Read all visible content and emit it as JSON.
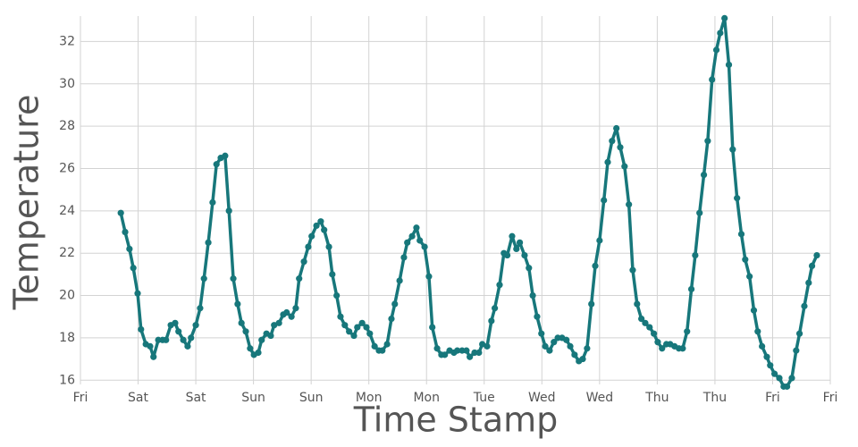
{
  "chart_data": {
    "type": "line",
    "xlabel": "Time Stamp",
    "ylabel": "Temperature",
    "color": "#17777b",
    "grid": true,
    "xlim": [
      0,
      156
    ],
    "xticks": [
      {
        "value": 0,
        "label": "Fri"
      },
      {
        "value": 12,
        "label": "Sat"
      },
      {
        "value": 24,
        "label": "Sat"
      },
      {
        "value": 36,
        "label": "Sun"
      },
      {
        "value": 48,
        "label": "Sun"
      },
      {
        "value": 60,
        "label": "Mon"
      },
      {
        "value": 72,
        "label": "Mon"
      },
      {
        "value": 84,
        "label": "Tue"
      },
      {
        "value": 96,
        "label": "Wed"
      },
      {
        "value": 108,
        "label": "Wed"
      },
      {
        "value": 120,
        "label": "Thu"
      },
      {
        "value": 132,
        "label": "Thu"
      },
      {
        "value": 144,
        "label": "Fri"
      },
      {
        "value": 156,
        "label": "Fri"
      }
    ],
    "ylim": [
      15.8,
      33.2
    ],
    "yticks": [
      16,
      18,
      20,
      22,
      24,
      26,
      28,
      30,
      32
    ],
    "x": [
      8.4,
      9.3,
      10.2,
      11,
      11.9,
      12.6,
      13.6,
      14.5,
      15.2,
      16.2,
      17.1,
      17.8,
      18.8,
      19.7,
      20.4,
      21.4,
      22.3,
      23,
      24,
      24.9,
      25.7,
      26.6,
      27.5,
      28.3,
      29.2,
      30.1,
      30.9,
      31.8,
      32.7,
      33.5,
      34.4,
      35.3,
      36.1,
      37,
      37.7,
      38.7,
      39.6,
      40.3,
      41.3,
      42.2,
      42.9,
      43.9,
      44.8,
      45.5,
      46.5,
      47.4,
      48.1,
      49.1,
      50,
      50.7,
      51.7,
      52.4,
      53.3,
      54.1,
      55,
      55.9,
      56.9,
      57.6,
      58.6,
      59.5,
      60.2,
      61.2,
      62.1,
      62.8,
      63.8,
      64.7,
      65.4,
      66.4,
      67.3,
      68,
      69,
      69.9,
      70.6,
      71.6,
      72.5,
      73.2,
      74.2,
      75.1,
      75.8,
      76.8,
      77.7,
      78.4,
      79.4,
      80.3,
      81,
      82,
      82.9,
      83.6,
      84.6,
      85.5,
      86.2,
      87.2,
      88.1,
      88.8,
      89.8,
      90.7,
      91.4,
      92.4,
      93.3,
      94.1,
      95,
      95.9,
      96.7,
      97.6,
      98.5,
      99.3,
      100.2,
      101.1,
      101.9,
      102.8,
      103.7,
      104.5,
      105.4,
      106.3,
      107.1,
      108,
      108.9,
      109.7,
      110.6,
      111.5,
      112.3,
      113.2,
      114.1,
      114.9,
      115.8,
      116.7,
      117.5,
      118.4,
      119.3,
      120.1,
      121,
      121.9,
      122.7,
      123.6,
      124.5,
      125.3,
      126.2,
      127.1,
      127.9,
      128.8,
      129.7,
      130.5,
      131.4,
      132.3,
      133.1,
      134,
      134.9,
      135.7,
      136.6,
      137.5,
      138.3,
      139.2,
      140.1,
      140.9,
      141.8,
      142.8,
      143.5,
      144.4,
      145.4,
      146.3,
      147,
      148,
      148.9,
      149.6,
      150.6,
      151.5,
      152.2,
      153.2
    ],
    "values": [
      23.9,
      23.0,
      22.2,
      21.3,
      20.1,
      18.4,
      17.7,
      17.6,
      17.1,
      17.9,
      17.9,
      17.9,
      18.6,
      18.7,
      18.3,
      17.9,
      17.6,
      18.0,
      18.6,
      19.4,
      20.8,
      22.5,
      24.4,
      26.2,
      26.5,
      26.6,
      24.0,
      20.8,
      19.6,
      18.7,
      18.3,
      17.5,
      17.2,
      17.3,
      17.9,
      18.2,
      18.1,
      18.6,
      18.7,
      19.1,
      19.2,
      19.0,
      19.4,
      20.8,
      21.6,
      22.3,
      22.8,
      23.3,
      23.5,
      23.1,
      22.3,
      21.0,
      20.0,
      19.0,
      18.6,
      18.3,
      18.1,
      18.5,
      18.7,
      18.5,
      18.2,
      17.6,
      17.4,
      17.4,
      17.7,
      18.9,
      19.6,
      20.7,
      21.8,
      22.5,
      22.8,
      23.2,
      22.6,
      22.3,
      20.9,
      18.5,
      17.5,
      17.2,
      17.2,
      17.4,
      17.3,
      17.4,
      17.4,
      17.4,
      17.1,
      17.3,
      17.3,
      17.7,
      17.6,
      18.8,
      19.4,
      20.5,
      22.0,
      21.9,
      22.8,
      22.2,
      22.5,
      21.9,
      21.3,
      20.0,
      19.0,
      18.2,
      17.6,
      17.4,
      17.8,
      18.0,
      18.0,
      17.9,
      17.6,
      17.2,
      16.9,
      17.0,
      17.5,
      19.6,
      21.4,
      22.6,
      24.5,
      26.3,
      27.3,
      27.9,
      27.0,
      26.1,
      24.3,
      21.2,
      19.6,
      18.9,
      18.7,
      18.5,
      18.2,
      17.8,
      17.5,
      17.7,
      17.7,
      17.6,
      17.5,
      17.5,
      18.3,
      20.3,
      21.9,
      23.9,
      25.7,
      27.3,
      30.2,
      31.6,
      32.4,
      33.1,
      30.9,
      26.9,
      24.6,
      22.9,
      21.7,
      20.9,
      19.3,
      18.3,
      17.6,
      17.1,
      16.7,
      16.3,
      16.1,
      15.7,
      15.7,
      16.1,
      17.4,
      18.2,
      19.5,
      20.6,
      21.4,
      21.9
    ]
  }
}
